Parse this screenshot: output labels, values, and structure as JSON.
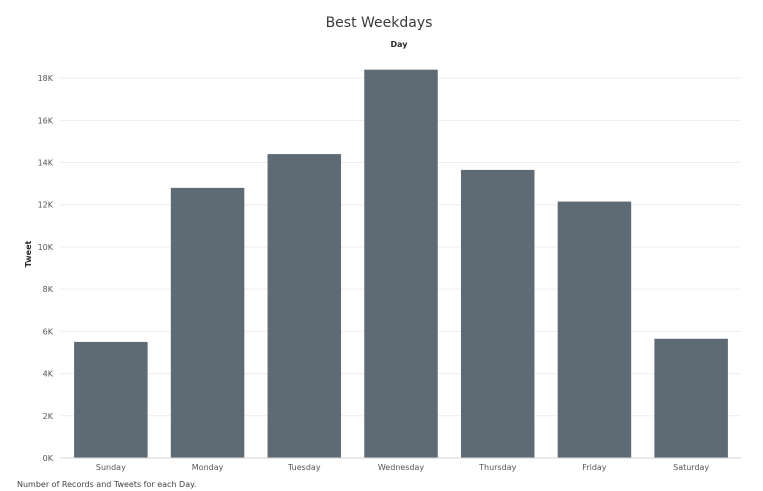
{
  "chart_data": {
    "type": "bar",
    "title": "Best Weekdays",
    "column_header": "Day",
    "xlabel": "",
    "ylabel": "Tweet",
    "categories": [
      "Sunday",
      "Monday",
      "Tuesday",
      "Wednesday",
      "Thursday",
      "Friday",
      "Saturday"
    ],
    "values": [
      5500,
      12800,
      14400,
      18400,
      13650,
      12150,
      5650
    ],
    "ylim": [
      0,
      19000
    ],
    "yticks": [
      0,
      2000,
      4000,
      6000,
      8000,
      10000,
      12000,
      14000,
      16000,
      18000
    ],
    "ytick_labels": [
      "0K",
      "2K",
      "4K",
      "6K",
      "8K",
      "10K",
      "12K",
      "14K",
      "16K",
      "18K"
    ],
    "grid": true,
    "bar_color": "#5f6b74",
    "footnote": "Number of Records and Tweets for each Day."
  }
}
